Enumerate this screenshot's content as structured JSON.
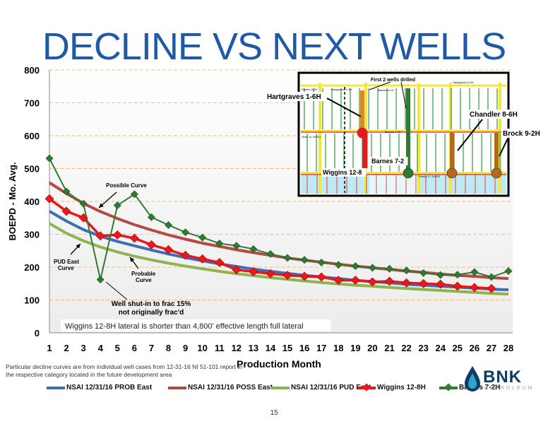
{
  "slide": {
    "title": "DECLINE VS NEXT WELLS",
    "footnote": "Particular decline curves are from individual well cases from 12-31-16 NI 51-101 report in the respective category located in the future development area",
    "page_number": "15",
    "logo_text": "BNK",
    "logo_sub": "PETROLEUM"
  },
  "colors": {
    "prob": "#3e6fb5",
    "poss": "#b34a46",
    "pud": "#8fb44e",
    "wiggins": "#e8191d",
    "barnes": "#2e7b31",
    "grid": "#f2c07a"
  },
  "chart_data": {
    "type": "line",
    "xlabel": "Production Month",
    "ylabel": "BOEPD - Mo. Avg.",
    "x": [
      1,
      2,
      3,
      4,
      5,
      6,
      7,
      8,
      9,
      10,
      11,
      12,
      13,
      14,
      15,
      16,
      17,
      18,
      19,
      20,
      21,
      22,
      23,
      24,
      25,
      26,
      27,
      28
    ],
    "xlim": [
      1,
      28
    ],
    "ylim": [
      0,
      800
    ],
    "yticks": [
      0,
      100,
      200,
      300,
      400,
      500,
      600,
      700,
      800
    ],
    "grid": true,
    "series": [
      {
        "name": "NSAI 12/31/16 PROB East",
        "color_key": "prob",
        "marker": "none",
        "values": [
          370,
          340,
          314,
          294,
          278,
          265,
          252,
          240,
          229,
          219,
          210,
          202,
          194,
          187,
          181,
          175,
          170,
          165,
          160,
          156,
          152,
          148,
          145,
          142,
          139,
          136,
          133,
          131
        ]
      },
      {
        "name": "NSAI 12/31/16 POSS East",
        "color_key": "poss",
        "marker": "none",
        "values": [
          457,
          424,
          394,
          369,
          348,
          329,
          313,
          298,
          285,
          273,
          263,
          253,
          244,
          236,
          228,
          221,
          215,
          209,
          203,
          198,
          193,
          188,
          184,
          179,
          175,
          172,
          168,
          165
        ]
      },
      {
        "name": "NSAI 12/31/16 PUD East",
        "color_key": "pud",
        "marker": "none",
        "values": [
          333,
          303,
          280,
          261,
          246,
          233,
          222,
          212,
          203,
          195,
          187,
          180,
          174,
          168,
          163,
          158,
          153,
          149,
          145,
          142,
          138,
          135,
          132,
          129,
          126,
          123,
          120,
          118
        ]
      },
      {
        "name": "Wiggins 12-8H",
        "color_key": "wiggins",
        "marker": "diamond",
        "values": [
          408,
          370,
          350,
          295,
          298,
          288,
          268,
          253,
          236,
          225,
          214,
          192,
          186,
          180,
          175,
          172,
          170,
          160,
          160,
          155,
          157,
          152,
          150,
          148,
          142,
          138,
          135,
          null
        ]
      },
      {
        "name": "Barnes 7-2H",
        "color_key": "barnes",
        "marker": "diamond",
        "values": [
          531,
          430,
          393,
          162,
          388,
          422,
          352,
          328,
          306,
          290,
          272,
          265,
          255,
          240,
          228,
          222,
          214,
          207,
          203,
          198,
          195,
          190,
          182,
          176,
          177,
          185,
          170,
          188
        ]
      }
    ],
    "annotations": [
      {
        "text": "Possible Curve",
        "kind": "curve-label"
      },
      {
        "text": "PUD East Curve",
        "kind": "curve-label"
      },
      {
        "text": "Probable Curve",
        "kind": "curve-label"
      },
      {
        "text": "Well shut-in to frac 15% not originally frac'd",
        "kind": "event-label"
      },
      {
        "text": "Wiggins 12-8H lateral is shorter than 4,800' effective length full lateral",
        "kind": "note"
      }
    ]
  },
  "inset_map": {
    "labels": {
      "first_wells": "First 2 wells drilled",
      "hartgraves": "Hartgraves 1-6H",
      "chandler": "Chandler 8-6H",
      "brock": "Brock 9-2H",
      "barnes": "Barnes 7-2",
      "wiggins": "Wiggins 12-8"
    },
    "small_labels": [
      "Hartgraves 5-3H",
      "Barnes 6-2H",
      "Barnes 7-2H",
      "Emery 17-1H/3/2",
      "Hartgraves 1-3H",
      "Sheets 2-2H",
      "Sims 11-2H/3/1"
    ]
  }
}
